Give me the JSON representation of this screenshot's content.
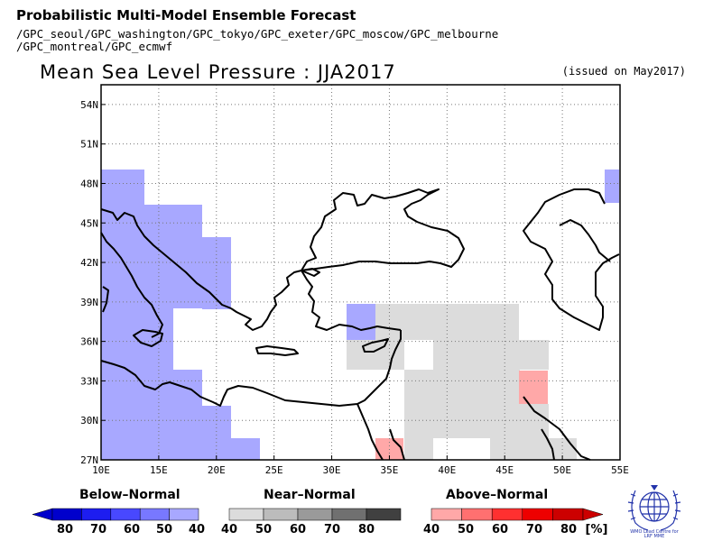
{
  "header": {
    "title": "Probabilistic Multi-Model Ensemble Forecast",
    "gpc_line1": "/GPC_seoul/GPC_washington/GPC_tokyo/GPC_exeter/GPC_moscow/GPC_melbourne",
    "gpc_line2": "/GPC_montreal/GPC_ecmwf"
  },
  "map": {
    "title": "Mean Sea Level Pressure : JJA2017",
    "issued": "(issued on May2017)",
    "lon_ticks": [
      "10E",
      "15E",
      "20E",
      "25E",
      "30E",
      "35E",
      "40E",
      "45E",
      "50E",
      "55E"
    ],
    "lat_ticks": [
      "27N",
      "30N",
      "33N",
      "36N",
      "39N",
      "42N",
      "45N",
      "48N",
      "51N",
      "54N"
    ],
    "lon_range": [
      10,
      55
    ],
    "lat_range": [
      27,
      55.5
    ]
  },
  "legend": {
    "below": {
      "title": "Below–Normal",
      "labels": [
        "80",
        "70",
        "60",
        "50",
        "40"
      ],
      "colors": [
        "#0000cc",
        "#1d1df0",
        "#4848ff",
        "#7878ff",
        "#a8a8ff"
      ]
    },
    "near": {
      "title": "Near–Normal",
      "labels": [
        "40",
        "50",
        "60",
        "70",
        "80"
      ],
      "colors": [
        "#dcdcdc",
        "#bcbcbc",
        "#9a9a9a",
        "#707070",
        "#404040"
      ]
    },
    "above": {
      "title": "Above–Normal",
      "labels": [
        "40",
        "50",
        "60",
        "70",
        "80"
      ],
      "colors": [
        "#ffa8a8",
        "#ff7070",
        "#ff3030",
        "#ee0000",
        "#cc0000"
      ]
    },
    "unit": "[%]"
  },
  "logo": {
    "caption_line1": "WMO Lead Centre for",
    "caption_line2": "LRF MME"
  },
  "colors": {
    "below_40": "#a8a8ff",
    "near_40": "#dcdcdc",
    "above_40": "#ffa8a8",
    "grid": "#777777"
  }
}
